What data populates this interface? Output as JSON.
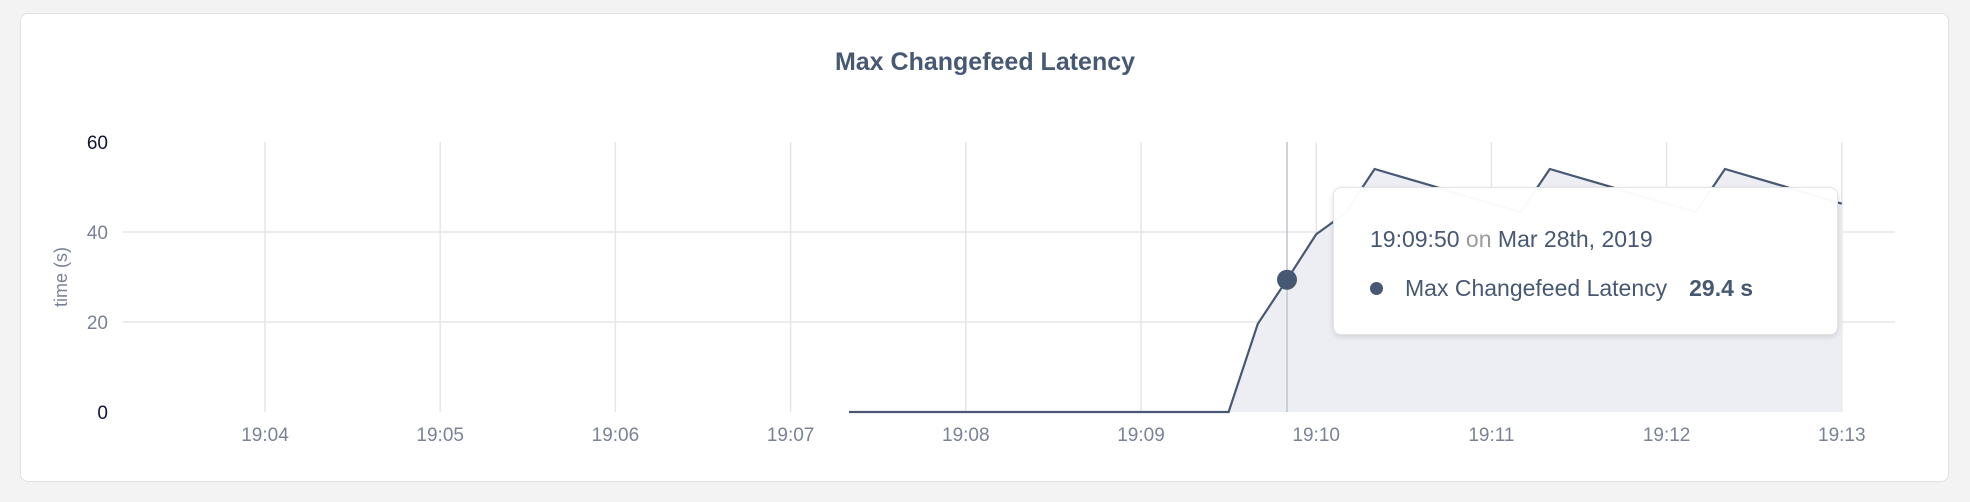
{
  "chart_data": {
    "type": "area",
    "title": "Max Changefeed Latency",
    "xlabel": "",
    "ylabel": "time (s)",
    "ylim": [
      0,
      60
    ],
    "yticks": [
      "0",
      "20",
      "40",
      "60"
    ],
    "xticks": [
      "19:04",
      "19:05",
      "19:06",
      "19:07",
      "19:08",
      "19:09",
      "19:10",
      "19:11",
      "19:12",
      "19:13"
    ],
    "grid": true,
    "series": [
      {
        "name": "Max Changefeed Latency",
        "color": "#475872",
        "fill": "#eceef3",
        "x": [
          "19:07:20",
          "19:07:30",
          "19:07:40",
          "19:07:50",
          "19:08:00",
          "19:08:10",
          "19:08:20",
          "19:08:30",
          "19:08:40",
          "19:08:50",
          "19:09:00",
          "19:09:10",
          "19:09:20",
          "19:09:30",
          "19:09:40",
          "19:09:50",
          "19:10:00",
          "19:10:10",
          "19:10:20",
          "19:10:30",
          "19:10:40",
          "19:10:50",
          "19:11:00",
          "19:11:10",
          "19:11:20",
          "19:11:30",
          "19:11:40",
          "19:11:50",
          "19:12:00",
          "19:12:10",
          "19:12:20",
          "19:12:30",
          "19:12:40",
          "19:12:50",
          "19:13:00"
        ],
        "values": [
          0,
          0,
          0,
          0,
          0,
          0,
          0,
          0,
          0,
          0,
          0,
          0,
          0,
          0,
          19.6,
          29.4,
          39.5,
          44.2,
          54,
          52.1,
          50.2,
          48.2,
          46.3,
          44.4,
          54,
          52.1,
          50.2,
          48.2,
          46.3,
          44.4,
          54,
          52.1,
          50.2,
          48.2,
          46.3
        ]
      }
    ],
    "hover": {
      "x": "19:09:50",
      "value": 29.4
    }
  },
  "tooltip": {
    "time": "19:09:50",
    "on": "on",
    "date": "Mar 28th, 2019",
    "series_name": "Max Changefeed Latency",
    "value": "29.4 s"
  }
}
